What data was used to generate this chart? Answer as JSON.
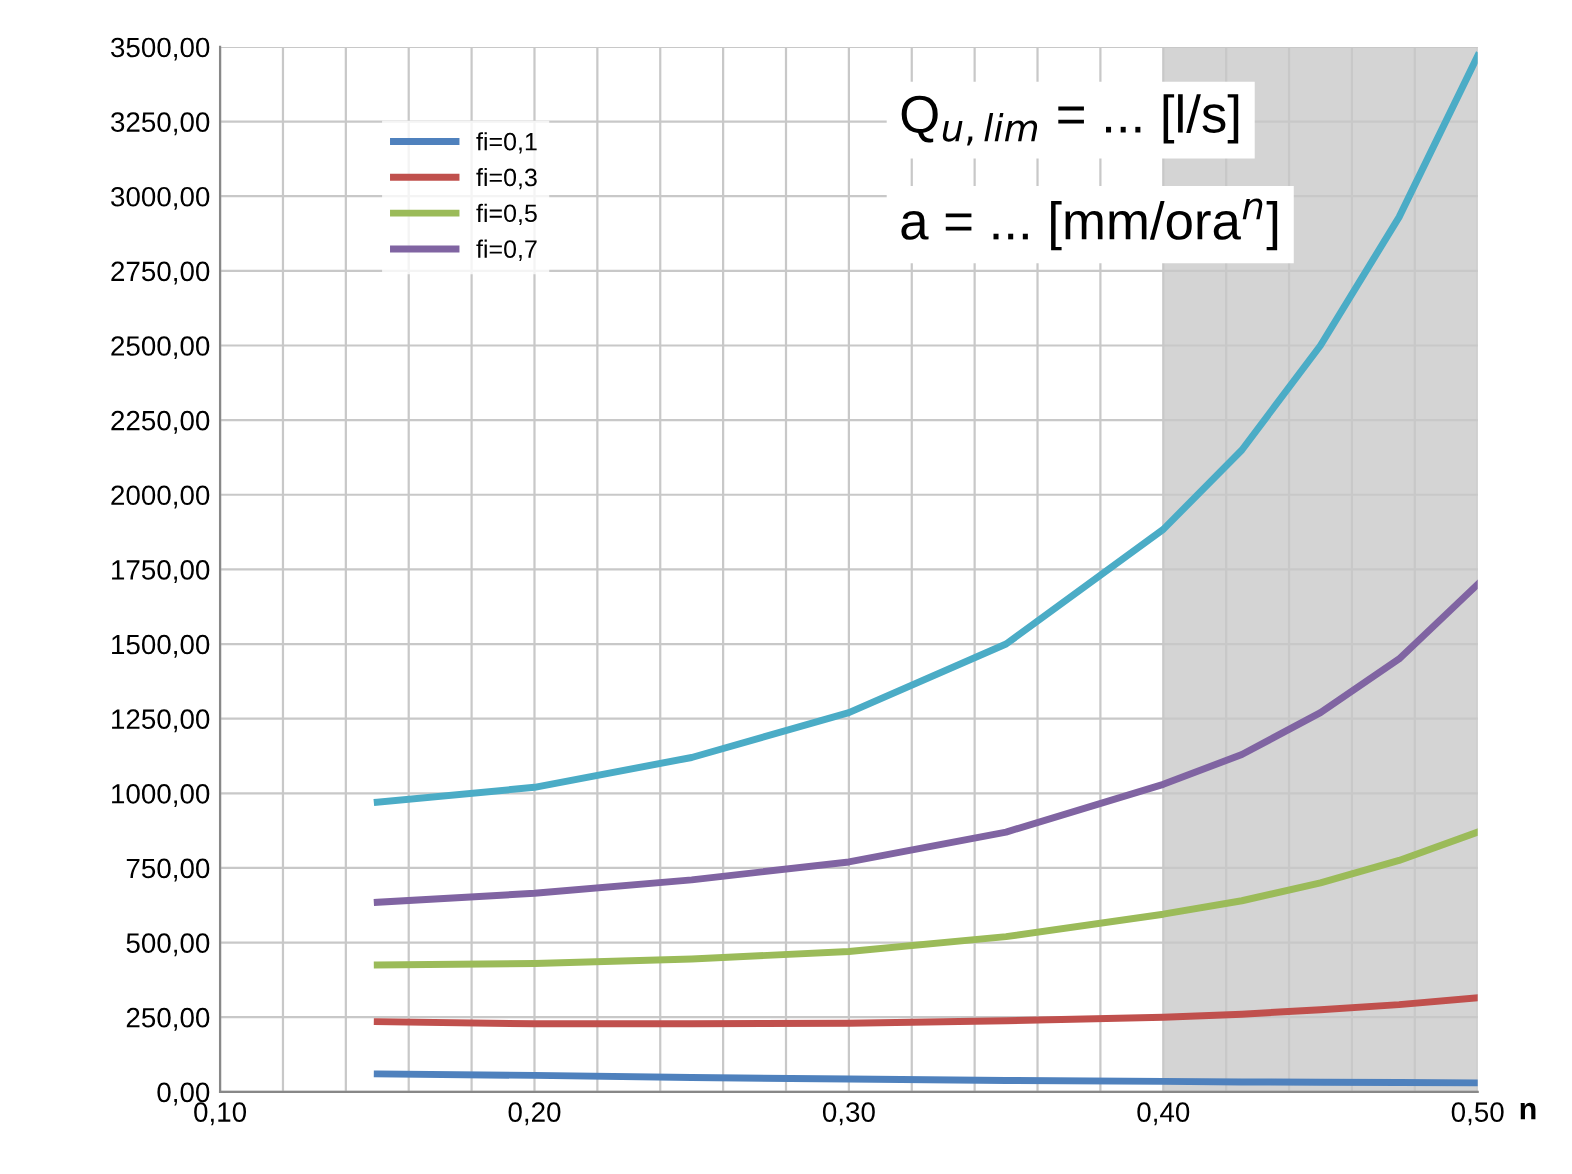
{
  "chart_data": {
    "type": "line",
    "xlabel": "n",
    "annotations": [
      "Q$_{u,lim}$ = ... [l/s]",
      "a = ... [mm/ora$^{n}$]"
    ],
    "x": [
      0.15,
      0.2,
      0.25,
      0.3,
      0.35,
      0.4,
      0.425,
      0.45,
      0.475,
      0.5
    ],
    "series": [
      {
        "name": "fi=0,1",
        "color": "#4f81bd",
        "values": [
          60,
          55,
          48,
          43,
          38,
          35,
          33,
          32,
          31,
          30
        ]
      },
      {
        "name": "fi=0,3",
        "color": "#c0504d",
        "values": [
          235,
          228,
          228,
          230,
          238,
          250,
          260,
          275,
          292,
          315
        ]
      },
      {
        "name": "fi=0,5",
        "color": "#9bbb59",
        "values": [
          425,
          430,
          445,
          470,
          520,
          595,
          640,
          700,
          775,
          870
        ]
      },
      {
        "name": "fi=0,7",
        "color": "#8064a2",
        "values": [
          635,
          665,
          710,
          770,
          870,
          1030,
          1130,
          1270,
          1450,
          1700
        ]
      },
      {
        "color": "#4bacc6",
        "values": [
          970,
          1020,
          1120,
          1270,
          1500,
          1884,
          2150,
          2500,
          2930,
          3470
        ]
      }
    ],
    "xlim": [
      0.1,
      0.5
    ],
    "ylim": [
      0,
      3500
    ],
    "xticks": [
      {
        "value": 0.1,
        "label": "0,10"
      },
      {
        "value": 0.12,
        "label": null
      },
      {
        "value": 0.14,
        "label": null
      },
      {
        "value": 0.16,
        "label": null
      },
      {
        "value": 0.18,
        "label": null
      },
      {
        "value": 0.2,
        "label": "0,20"
      },
      {
        "value": 0.22,
        "label": null
      },
      {
        "value": 0.24,
        "label": null
      },
      {
        "value": 0.26,
        "label": null
      },
      {
        "value": 0.28,
        "label": null
      },
      {
        "value": 0.3,
        "label": "0,30"
      },
      {
        "value": 0.32,
        "label": null
      },
      {
        "value": 0.34,
        "label": null
      },
      {
        "value": 0.36,
        "label": null
      },
      {
        "value": 0.38,
        "label": null
      },
      {
        "value": 0.4,
        "label": "0,40"
      },
      {
        "value": 0.42,
        "label": null
      },
      {
        "value": 0.44,
        "label": null
      },
      {
        "value": 0.46,
        "label": null
      },
      {
        "value": 0.48,
        "label": null
      },
      {
        "value": 0.5,
        "label": "0,50"
      }
    ],
    "yticks": [
      {
        "value": 0,
        "label": "0,00"
      },
      {
        "value": 250,
        "label": "250,00"
      },
      {
        "value": 500,
        "label": "500,00"
      },
      {
        "value": 750,
        "label": "750,00"
      },
      {
        "value": 1000,
        "label": "1000,00"
      },
      {
        "value": 1250,
        "label": "1250,00"
      },
      {
        "value": 1500,
        "label": "1500,00"
      },
      {
        "value": 1750,
        "label": "1750,00"
      },
      {
        "value": 2000,
        "label": "2000,00"
      },
      {
        "value": 2250,
        "label": "2250,00"
      },
      {
        "value": 2500,
        "label": "2500,00"
      },
      {
        "value": 2750,
        "label": "2750,00"
      },
      {
        "value": 3000,
        "label": "3000,00"
      },
      {
        "value": 3250,
        "label": "3250,00"
      },
      {
        "value": 3500,
        "label": "3500,00"
      }
    ],
    "bands": [
      {
        "axis": "x",
        "from": 0.4,
        "to": 0.5,
        "color": "#d4d4d4"
      }
    ],
    "grid": true,
    "legend": "top left",
    "marker": "none",
    "line_style": "solid"
  }
}
